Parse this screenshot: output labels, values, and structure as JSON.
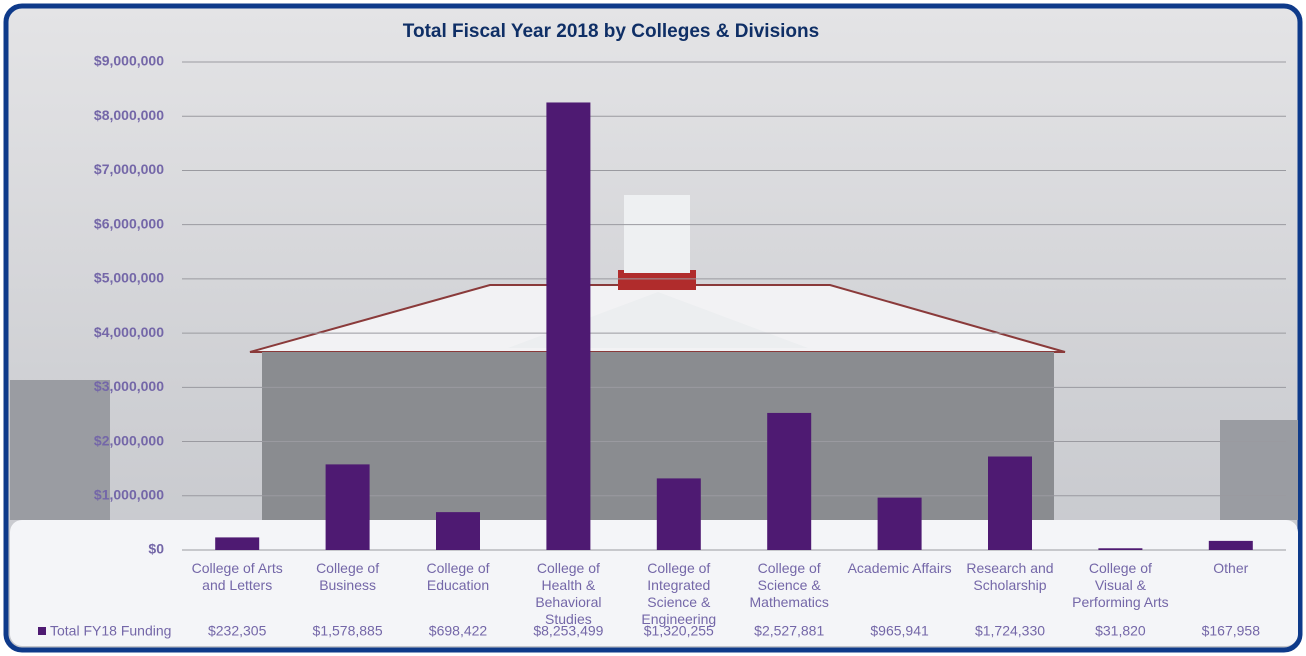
{
  "chart_data": {
    "type": "bar",
    "title": "Total Fiscal Year 2018 by Colleges & Divisions",
    "categories": [
      "College of Arts and Letters",
      "College of Business",
      "College of Education",
      "College of Health & Behavioral Studies",
      "College of Integrated Science & Engineering",
      "College of Science & Mathematics",
      "Academic Affairs",
      "Research and Scholarship",
      "College of Visual & Performing Arts",
      "Other"
    ],
    "series": [
      {
        "name": "Total FY18 Funding",
        "color": "#4e1a72",
        "values": [
          232305,
          1578885,
          698422,
          8253499,
          1320255,
          2527881,
          965941,
          1724330,
          31820,
          167958
        ],
        "value_labels": [
          "$232,305",
          "$1,578,885",
          "$698,422",
          "$8,253,499",
          "$1,320,255",
          "$2,527,881",
          "$965,941",
          "$1,724,330",
          "$31,820",
          "$167,958"
        ]
      }
    ],
    "ylim": [
      0,
      9000000
    ],
    "yticks": [
      {
        "value": 0,
        "label": "$0"
      },
      {
        "value": 1000000,
        "label": "$1,000,000"
      },
      {
        "value": 2000000,
        "label": "$2,000,000"
      },
      {
        "value": 3000000,
        "label": "$3,000,000"
      },
      {
        "value": 4000000,
        "label": "$4,000,000"
      },
      {
        "value": 5000000,
        "label": "$5,000,000"
      },
      {
        "value": 6000000,
        "label": "$6,000,000"
      },
      {
        "value": 7000000,
        "label": "$7,000,000"
      },
      {
        "value": 8000000,
        "label": "$8,000,000"
      },
      {
        "value": 9000000,
        "label": "$9,000,000"
      }
    ],
    "grid": true,
    "legend": "bottom-left",
    "data_table": true
  }
}
